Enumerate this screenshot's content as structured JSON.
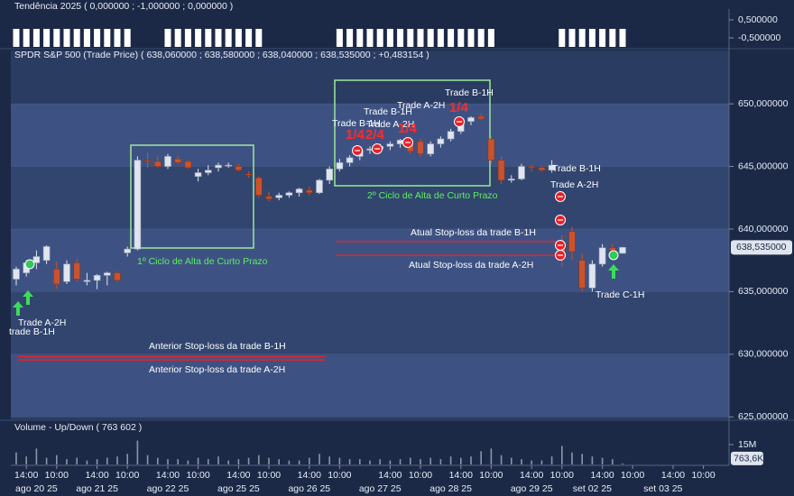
{
  "chart_data": [
    {
      "type": "bar",
      "title": "Tendência 2025  ( 0,000000 ; -1,000000 ; 0,000000 )",
      "values": [
        -1,
        -1,
        -1,
        -1,
        -1,
        -1,
        -1,
        -1,
        -1,
        -1,
        -1,
        -1,
        0,
        0,
        0,
        -1,
        -1,
        -1,
        -1,
        -1,
        -1,
        -1,
        -1,
        -1,
        -1,
        0,
        0,
        0,
        0,
        0,
        0,
        0,
        -1,
        -1,
        -1,
        -1,
        -1,
        -1,
        -1,
        -1,
        -1,
        -1,
        -1,
        -1,
        -1,
        -1,
        -1,
        -1,
        0,
        0,
        0,
        0,
        0,
        0,
        -1,
        -1,
        -1,
        -1,
        -1,
        -1,
        -1
      ],
      "color": "#ffffff",
      "ylim": [
        -1,
        0.9
      ],
      "yticks": [
        {
          "value": 0.5,
          "label": "0,500000"
        },
        {
          "value": -0.5,
          "label": "-0,500000"
        }
      ]
    },
    {
      "type": "candlestick",
      "title": "SPDR S&P 500 (Trade Price)  ( 638,060000 ; 638,580000 ; 638,040000 ; 638,535000 ; +0,483154 )",
      "open": [
        636.0,
        636.5,
        637.3,
        637.5,
        636.8,
        635.8,
        637.3,
        635.8,
        635.9,
        636.3,
        636.5,
        638.1,
        638.4,
        645.5,
        645.4,
        645.0,
        645.6,
        645.4,
        644.2,
        644.5,
        644.9,
        645.1,
        645.0,
        644.4,
        644.1,
        642.6,
        642.5,
        642.7,
        642.9,
        643.1,
        642.9,
        643.9,
        644.8,
        645.3,
        645.8,
        646.3,
        646.4,
        646.6,
        646.8,
        647.1,
        647.0,
        646.0,
        646.8,
        647.2,
        647.8,
        648.6,
        649.0,
        647.2,
        645.5,
        643.9,
        644.0,
        645.0,
        644.9,
        644.7,
        638.9,
        639.8,
        637.5,
        635.3,
        637.2,
        638.5,
        638.06
      ],
      "high": [
        637.0,
        637.5,
        638.3,
        638.7,
        637.4,
        637.5,
        637.6,
        636.5,
        636.4,
        636.6,
        636.6,
        638.6,
        645.8,
        646.1,
        645.8,
        646.0,
        645.8,
        645.5,
        644.8,
        645.1,
        645.3,
        645.3,
        645.2,
        644.6,
        644.2,
        643.0,
        642.9,
        643.0,
        643.3,
        643.4,
        644.0,
        645.0,
        645.6,
        645.9,
        646.5,
        646.6,
        646.8,
        647.0,
        647.2,
        647.3,
        647.2,
        647.0,
        647.4,
        648.0,
        648.8,
        649.0,
        649.2,
        647.4,
        645.8,
        644.3,
        645.2,
        645.1,
        645.0,
        645.5,
        639.5,
        640.2,
        638.0,
        637.5,
        638.8,
        638.8,
        638.58
      ],
      "low": [
        635.5,
        636.2,
        636.8,
        637.2,
        635.2,
        635.6,
        635.8,
        635.5,
        635.2,
        635.5,
        635.8,
        637.8,
        638.3,
        644.9,
        644.9,
        644.8,
        645.2,
        644.8,
        643.8,
        644.3,
        644.6,
        644.9,
        644.6,
        644.1,
        642.5,
        642.2,
        642.3,
        642.5,
        642.6,
        642.7,
        642.8,
        643.6,
        644.6,
        645.0,
        645.5,
        646.0,
        646.1,
        646.3,
        646.5,
        646.0,
        645.8,
        645.8,
        646.5,
        647.0,
        647.6,
        648.3,
        648.7,
        645.2,
        643.6,
        643.7,
        643.9,
        644.6,
        644.6,
        644.5,
        637.0,
        637.5,
        635.0,
        635.0,
        637.0,
        638.0,
        638.04
      ],
      "close": [
        636.8,
        637.3,
        637.8,
        638.6,
        635.6,
        637.2,
        636.0,
        635.9,
        636.3,
        636.5,
        635.9,
        638.4,
        645.5,
        645.4,
        645.0,
        645.8,
        645.3,
        644.9,
        644.5,
        644.7,
        645.1,
        645.1,
        644.7,
        644.3,
        642.7,
        642.4,
        642.7,
        642.9,
        643.2,
        642.9,
        643.9,
        644.8,
        645.3,
        645.7,
        646.3,
        646.4,
        646.6,
        646.8,
        647.1,
        646.2,
        646.0,
        646.8,
        647.2,
        647.8,
        648.6,
        648.9,
        648.8,
        645.5,
        643.9,
        644.0,
        645.0,
        644.9,
        644.7,
        645.1,
        637.8,
        638.2,
        635.3,
        637.2,
        638.5,
        638.3,
        638.535
      ],
      "up_color": "#dfe4ee",
      "down_color": "#c9532e",
      "ylim": [
        624.8,
        653.9
      ],
      "yticks": [
        {
          "value": 650,
          "label": "650,000000"
        },
        {
          "value": 645,
          "label": "645,000000"
        },
        {
          "value": 640,
          "label": "640,000000"
        },
        {
          "value": 635,
          "label": "635,000000"
        },
        {
          "value": 630,
          "label": "630,000000"
        },
        {
          "value": 625,
          "label": "625,000000"
        }
      ],
      "last_price": {
        "value": 638.535,
        "label": "638,535000"
      },
      "stop_lines": [
        {
          "value": 639.0,
          "label": "Atual Stop-loss da trade B-1H"
        },
        {
          "value": 637.9,
          "label": "Atual Stop-loss da trade A-2H"
        },
        {
          "value": 629.8,
          "label": "Anterior Stop-loss da trade B-1H"
        },
        {
          "value": 629.55,
          "label": "Anterior Stop-loss da trade A-2H"
        }
      ],
      "annotations": [
        "Trade A-2H",
        "trade B-1H",
        "1º Ciclo de Alta de Curto Prazo",
        "2º Ciclo de Alta de Curto Prazo",
        "Trade B-1H",
        "Trade B-1H",
        "Trade A-2H",
        "Trade A-2H",
        "Trade B-1H",
        "1/4",
        "2/4",
        "1/4",
        "1/4",
        "Trade B-1H",
        "Trade A-2H",
        "Trade C-1H"
      ],
      "xticks_time": [
        {
          "value": 1,
          "label": "14:00"
        },
        {
          "value": 4,
          "label": "10:00"
        },
        {
          "value": 8,
          "label": "14:00"
        },
        {
          "value": 11,
          "label": "10:00"
        },
        {
          "value": 15,
          "label": "14:00"
        },
        {
          "value": 18,
          "label": "10:00"
        },
        {
          "value": 22,
          "label": "14:00"
        },
        {
          "value": 25,
          "label": "10:00"
        },
        {
          "value": 29,
          "label": "14:00"
        },
        {
          "value": 32,
          "label": "10:00"
        },
        {
          "value": 37,
          "label": "14:00"
        },
        {
          "value": 40,
          "label": "10:00"
        },
        {
          "value": 44,
          "label": "14:00"
        },
        {
          "value": 47,
          "label": "10:00"
        },
        {
          "value": 51,
          "label": "14:00"
        },
        {
          "value": 54,
          "label": "10:00"
        },
        {
          "value": 58,
          "label": "14:00"
        },
        {
          "value": 61,
          "label": "10:00"
        },
        {
          "value": 65,
          "label": "14:00"
        },
        {
          "value": 68,
          "label": "10:00"
        }
      ],
      "xticks_date": [
        {
          "value": 2,
          "label": "ago 20 25"
        },
        {
          "value": 8,
          "label": "ago 21 25"
        },
        {
          "value": 15,
          "label": "ago 22 25"
        },
        {
          "value": 22,
          "label": "ago 25 25"
        },
        {
          "value": 29,
          "label": "ago 26 25"
        },
        {
          "value": 36,
          "label": "ago 27 25"
        },
        {
          "value": 43,
          "label": "ago 28 25"
        },
        {
          "value": 51,
          "label": "ago 29 25"
        },
        {
          "value": 57,
          "label": "set 02 25"
        },
        {
          "value": 64,
          "label": "set 03 25"
        }
      ]
    },
    {
      "type": "bar",
      "title": "Volume - Up/Down  ( 763 602 )",
      "values": [
        9000000,
        6000000,
        12000000,
        5000000,
        7000000,
        4000000,
        5000000,
        3000000,
        4000000,
        5000000,
        6000000,
        8000000,
        18000000,
        7000000,
        5000000,
        4000000,
        4000000,
        3000000,
        5000000,
        4000000,
        6000000,
        3000000,
        4000000,
        5000000,
        7000000,
        5000000,
        4000000,
        3000000,
        3000000,
        5000000,
        8000000,
        6000000,
        5000000,
        4000000,
        4000000,
        3000000,
        4000000,
        3000000,
        4000000,
        5000000,
        4000000,
        5000000,
        4000000,
        6000000,
        5000000,
        6000000,
        10000000,
        12000000,
        7000000,
        5000000,
        4000000,
        3000000,
        3000000,
        6000000,
        14000000,
        9000000,
        8000000,
        6000000,
        5000000,
        4000000,
        763602
      ],
      "color": "#8c95a8",
      "ylim": [
        0,
        32000000
      ],
      "yticks": [
        {
          "value": 15000000,
          "label": "15M"
        }
      ],
      "last_value": {
        "value": 763602,
        "label": "763,6K"
      }
    }
  ]
}
